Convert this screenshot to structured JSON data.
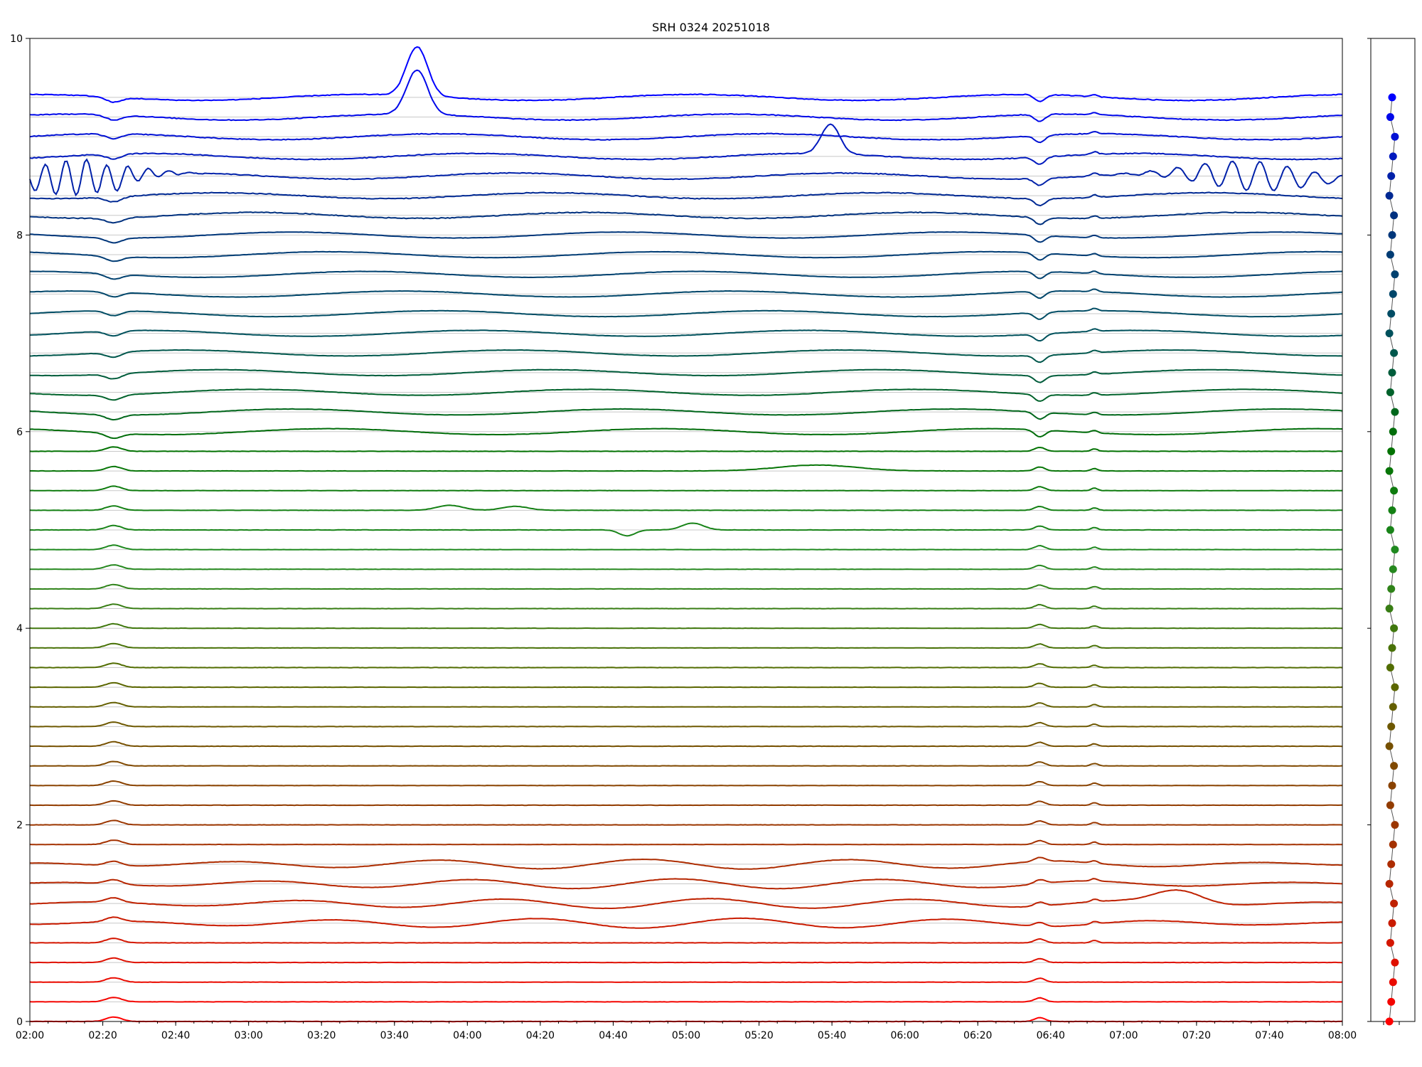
{
  "chart_data": {
    "type": "line",
    "title": "SRH 0324 20251018",
    "xlabel": "",
    "ylabel": "",
    "x_tick_labels": [
      "02:00",
      "02:20",
      "02:40",
      "03:00",
      "03:20",
      "03:40",
      "04:00",
      "04:20",
      "04:40",
      "05:00",
      "05:20",
      "05:40",
      "06:00",
      "06:20",
      "06:40",
      "07:00",
      "07:20",
      "07:40",
      "08:00"
    ],
    "y_tick_labels": [
      "0",
      "2",
      "4",
      "6",
      "8",
      "10"
    ],
    "ylim": [
      0,
      10
    ],
    "series_count": 48,
    "series_spacing": 0.2,
    "offsets_start": 0.0,
    "offsets_step": 0.2,
    "grid": "horizontal lines at each series baseline",
    "color_gradient": [
      "#ff0000",
      "#c02000",
      "#8b4000",
      "#556b00",
      "#228b22",
      "#007000",
      "#005060",
      "#003080",
      "#0000ff"
    ],
    "common_events": [
      {
        "time": "02:23",
        "note": "small bump visible on most channels"
      },
      {
        "time": "06:37",
        "note": "dip on upper channels, bump on lower channels"
      },
      {
        "time": "06:52",
        "note": "small spike on most channels"
      }
    ],
    "features": [
      {
        "series_index": 47,
        "note": "blue top trace, large pulse near 03:45"
      },
      {
        "series_index": 46,
        "note": "blue trace, large pulse near 03:45"
      },
      {
        "series_index": 44,
        "note": "blue trace, pulse near 05:38"
      },
      {
        "series_index": 43,
        "note": "oscillations near 02:05 and 07:35-07:55"
      },
      {
        "series_index": 28,
        "note": "green trace, bump near 05:30-05:45"
      },
      {
        "series_index": 26,
        "note": "green trace, bumps near 03:55-04:15"
      },
      {
        "series_index": 25,
        "note": "green trace, dip near 04:45 and bumps near 05:00"
      },
      {
        "series_index": 6,
        "note": "red trace, broad bump near 07:10-07:25"
      }
    ],
    "right_panel": {
      "type": "scatter",
      "description": "one colored marker per channel, vertically aligned with the series baselines"
    }
  }
}
